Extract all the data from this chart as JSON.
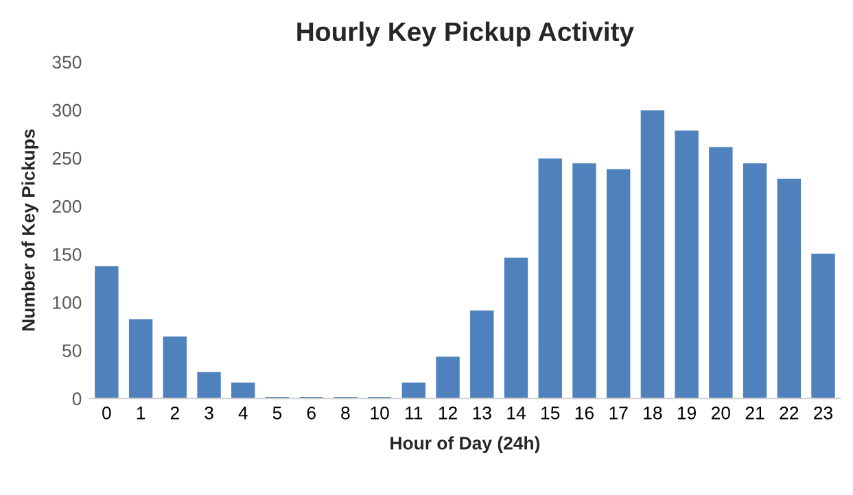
{
  "chart_data": {
    "type": "bar",
    "title": "Hourly Key Pickup Activity",
    "xlabel": "Hour of Day (24h)",
    "ylabel": "Number of Key Pickups",
    "categories": [
      "0",
      "1",
      "2",
      "3",
      "4",
      "5",
      "6",
      "8",
      "10",
      "11",
      "12",
      "13",
      "14",
      "15",
      "16",
      "17",
      "18",
      "19",
      "20",
      "21",
      "22",
      "23"
    ],
    "values": [
      138,
      83,
      65,
      28,
      17,
      2,
      2,
      2,
      2,
      17,
      44,
      92,
      147,
      250,
      245,
      239,
      300,
      279,
      262,
      245,
      229,
      151
    ],
    "color": "#4f81bd",
    "ylim": [
      0,
      350
    ],
    "yticks": [
      0,
      50,
      100,
      150,
      200,
      250,
      300,
      350
    ],
    "grid": false,
    "legend": false
  }
}
